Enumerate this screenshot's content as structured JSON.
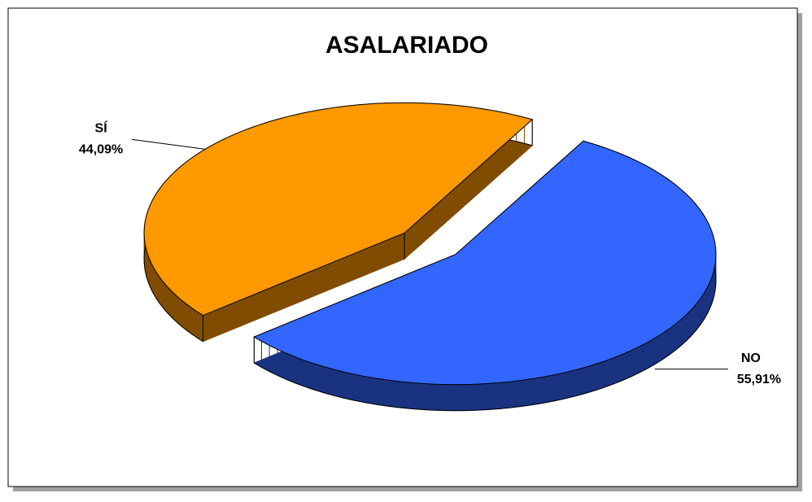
{
  "chart_data": {
    "type": "pie",
    "title": "ASALARIADO",
    "categories": [
      "SÍ",
      "NO"
    ],
    "values": [
      44.09,
      55.91
    ],
    "value_labels": [
      "44,09%",
      "55,91%"
    ],
    "colors": [
      "#ff9900",
      "#3366ff"
    ]
  }
}
